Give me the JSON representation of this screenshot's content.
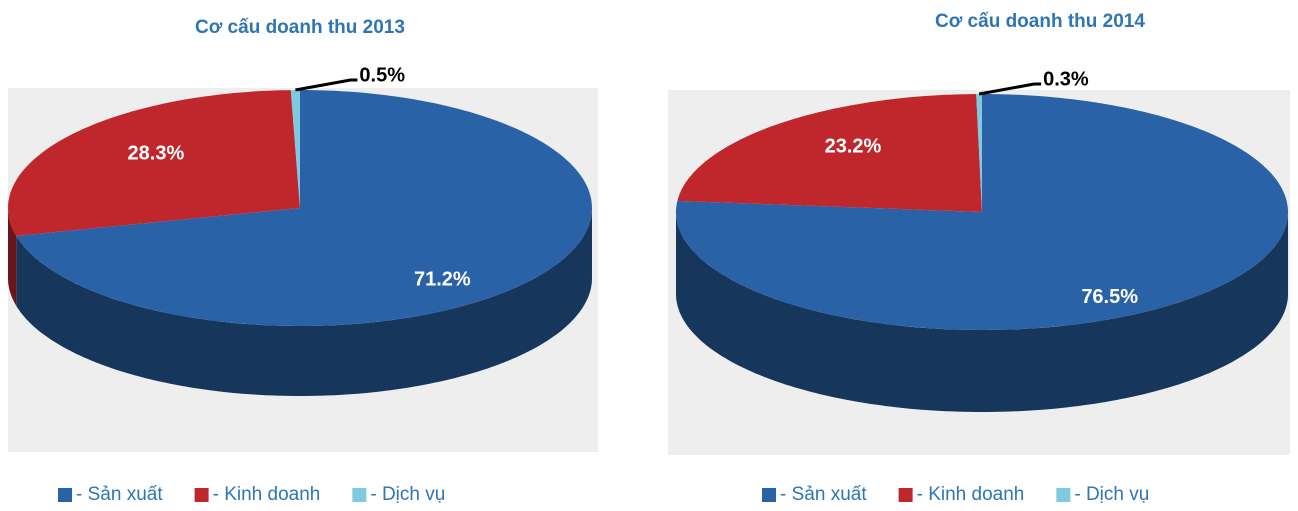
{
  "chart_data": [
    {
      "type": "pie",
      "title": "Cơ cấu doanh thu 2013",
      "categories": [
        "- Sản xuất",
        "- Kinh doanh",
        "- Dịch vụ"
      ],
      "values": [
        71.2,
        28.3,
        0.5
      ],
      "value_labels": [
        "71.2%",
        "28.3%",
        "0.5%"
      ],
      "colors": [
        "#2a62a8",
        "#c0272d",
        "#7ecbe0"
      ]
    },
    {
      "type": "pie",
      "title": "Cơ cấu doanh thu 2014",
      "categories": [
        "- Sản xuất",
        "- Kinh doanh",
        "- Dịch vụ"
      ],
      "values": [
        76.5,
        23.2,
        0.3
      ],
      "value_labels": [
        "76.5%",
        "23.2%",
        "0.3%"
      ],
      "colors": [
        "#2a62a8",
        "#c0272d",
        "#7ecbe0"
      ]
    }
  ]
}
